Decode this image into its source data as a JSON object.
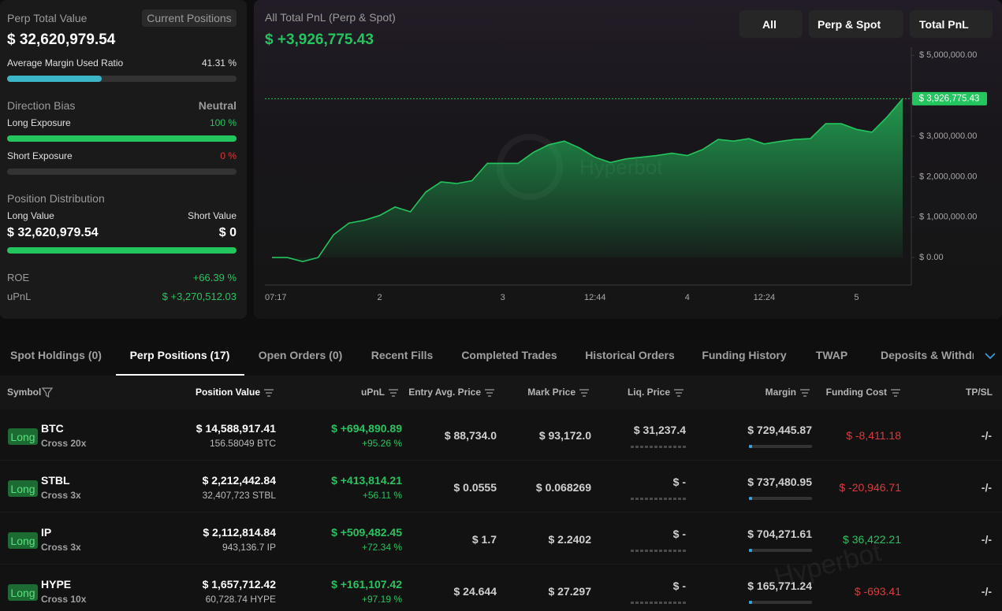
{
  "watermark": "Hyperbot",
  "summary": {
    "perp_total_label": "Perp Total Value",
    "current_positions": "Current Positions",
    "perp_total_value": "$ 32,620,979.54",
    "margin": {
      "label": "Average Margin Used Ratio",
      "value": 41.31,
      "value_label": "41.31 %"
    },
    "direction_bias": {
      "label": "Direction Bias",
      "value": "Neutral"
    },
    "long_exposure": {
      "label": "Long Exposure",
      "value": 100,
      "value_label": "100 %"
    },
    "short_exposure": {
      "label": "Short Exposure",
      "value": 0,
      "value_label": "0 %"
    },
    "distribution": {
      "label": "Position Distribution",
      "long_label": "Long Value",
      "short_label": "Short Value",
      "long_value": "$ 32,620,979.54",
      "short_value": "$ 0"
    },
    "roe": {
      "label": "ROE",
      "value": "+66.39 %"
    },
    "upnl": {
      "label": "uPnL",
      "value": "$ +3,270,512.03"
    }
  },
  "chart_data": {
    "type": "area",
    "title": "All Total PnL (Perp & Spot)",
    "headline": "$ +3,926,775.43",
    "current_label": "$ 3,926,775.43",
    "controls": [
      "All",
      "Perp & Spot",
      "Total PnL"
    ],
    "color": "#22c55e",
    "categories": [
      "07:17",
      null,
      null,
      null,
      null,
      null,
      null,
      "2",
      null,
      null,
      null,
      null,
      null,
      null,
      null,
      "3",
      null,
      null,
      null,
      null,
      null,
      "12:44",
      null,
      null,
      null,
      null,
      null,
      "4",
      null,
      null,
      null,
      null,
      "12:24",
      null,
      null,
      null,
      null,
      null,
      "5",
      null,
      null,
      null
    ],
    "values": [
      0,
      0,
      -100000,
      0,
      560000,
      850000,
      920000,
      1040000,
      1250000,
      1130000,
      1620000,
      1870000,
      1830000,
      1900000,
      2330000,
      2330000,
      2330000,
      2600000,
      2790000,
      2880000,
      2710000,
      2480000,
      2350000,
      2440000,
      2480000,
      2520000,
      2580000,
      2520000,
      2670000,
      2920000,
      2880000,
      2940000,
      2810000,
      2870000,
      2920000,
      2940000,
      3310000,
      3310000,
      3170000,
      3100000,
      3480000,
      3926775.43
    ],
    "ylim": [
      -680000,
      5200000
    ],
    "yticks": [
      {
        "value": 0,
        "label": "$ 0.00"
      },
      {
        "value": 1000000,
        "label": "$ 1,000,000.00"
      },
      {
        "value": 2000000,
        "label": "$ 2,000,000.00"
      },
      {
        "value": 3000000,
        "label": "$ 3,000,000.00"
      },
      {
        "value": 5000000,
        "label": "$ 5,000,000.00"
      }
    ]
  },
  "tabs": {
    "items": [
      "Spot Holdings (0)",
      "Perp Positions (17)",
      "Open Orders (0)",
      "Recent Fills",
      "Completed Trades",
      "Historical Orders",
      "Funding History",
      "TWAP",
      "Deposits & Withdra"
    ],
    "active": 1
  },
  "table": {
    "columns": [
      "Symbol",
      "Position Value",
      "uPnL",
      "Entry Avg. Price",
      "Mark Price",
      "Liq. Price",
      "Margin",
      "Funding Cost",
      "TP/SL"
    ],
    "rows": [
      {
        "side": "Long",
        "symbol": "BTC",
        "mode": "Cross 20x",
        "position_value": "$ 14,588,917.41",
        "size": "156.58049 BTC",
        "upnl": "$ +694,890.89",
        "upnl_pct": "+95.26 %",
        "entry": "$ 88,734.0",
        "mark": "$ 93,172.0",
        "liq": "$ 31,237.4",
        "margin": "$ 729,445.87",
        "funding": "$ -8,411.18",
        "tpsl": "-/-"
      },
      {
        "side": "Long",
        "symbol": "STBL",
        "mode": "Cross 3x",
        "position_value": "$ 2,212,442.84",
        "size": "32,407,723 STBL",
        "upnl": "$ +413,814.21",
        "upnl_pct": "+56.11 %",
        "entry": "$ 0.0555",
        "mark": "$ 0.068269",
        "liq": "$ -",
        "margin": "$ 737,480.95",
        "funding": "$ -20,946.71",
        "tpsl": "-/-"
      },
      {
        "side": "Long",
        "symbol": "IP",
        "mode": "Cross 3x",
        "position_value": "$ 2,112,814.84",
        "size": "943,136.7 IP",
        "upnl": "$ +509,482.45",
        "upnl_pct": "+72.34 %",
        "entry": "$ 1.7",
        "mark": "$ 2.2402",
        "liq": "$ -",
        "margin": "$ 704,271.61",
        "funding": "$ 36,422.21",
        "tpsl": "-/-"
      },
      {
        "side": "Long",
        "symbol": "HYPE",
        "mode": "Cross 10x",
        "position_value": "$ 1,657,712.42",
        "size": "60,728.74 HYPE",
        "upnl": "$ +161,107.42",
        "upnl_pct": "+97.19 %",
        "entry": "$ 24.644",
        "mark": "$ 27.297",
        "liq": "$ -",
        "margin": "$ 165,771.24",
        "funding": "$ -693.41",
        "tpsl": "-/-"
      }
    ]
  }
}
